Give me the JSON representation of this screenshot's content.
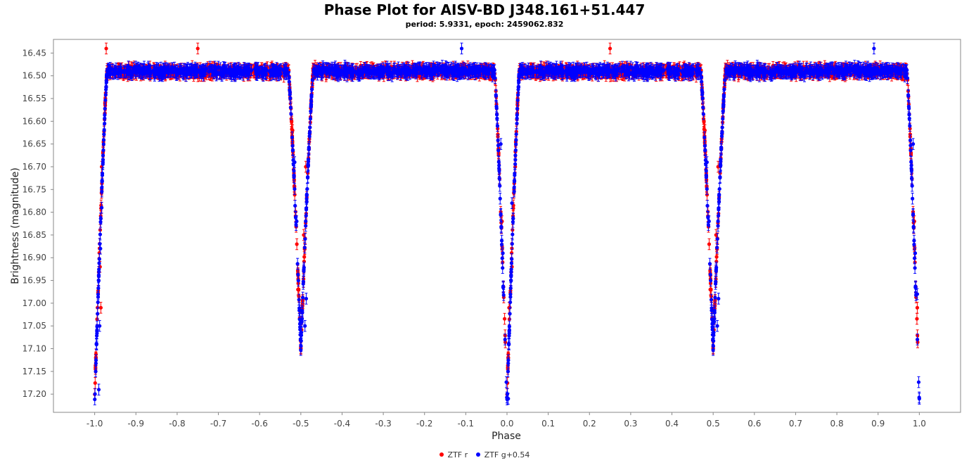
{
  "chart_data": {
    "type": "scatter",
    "title": "Phase Plot for AISV-BD J348.161+51.447",
    "subtitle": "period: 5.9331, epoch: 2459062.832",
    "xlabel": "Phase",
    "ylabel": "Brightness (magnitude)",
    "xlim": [
      -1.1,
      1.1
    ],
    "ylim": [
      16.42,
      17.24
    ],
    "y_inverted": true,
    "x_ticks": [
      "-1.0",
      "-0.9",
      "-0.8",
      "-0.7",
      "-0.6",
      "-0.5",
      "-0.4",
      "-0.3",
      "-0.2",
      "-0.1",
      "0.0",
      "0.1",
      "0.2",
      "0.3",
      "0.4",
      "0.5",
      "0.6",
      "0.7",
      "0.8",
      "0.9",
      "1.0"
    ],
    "y_ticks": [
      "16.45",
      "16.50",
      "16.55",
      "16.60",
      "16.65",
      "16.70",
      "16.75",
      "16.80",
      "16.85",
      "16.90",
      "16.95",
      "17.00",
      "17.05",
      "17.10",
      "17.15",
      "17.20"
    ],
    "grid": false,
    "legend_position": "bottom",
    "series": [
      {
        "name": "ZTF r",
        "color": "#ff0000",
        "error_bars": true,
        "baseline_mag": 16.49,
        "primary_eclipse": {
          "center_phase": 0.0,
          "depth_mag": 17.2,
          "half_width": 0.03
        },
        "secondary_eclipse": {
          "center_phase": 0.5,
          "depth_mag": 17.1,
          "half_width": 0.03
        },
        "sample_points": [
          {
            "x": -0.987,
            "y": 16.92
          },
          {
            "x": -0.985,
            "y": 17.01
          },
          {
            "x": -0.983,
            "y": 16.7
          },
          {
            "x": -0.98,
            "y": 16.67
          },
          {
            "x": -0.975,
            "y": 16.56
          },
          {
            "x": -0.972,
            "y": 16.44
          },
          {
            "x": -0.52,
            "y": 16.62
          },
          {
            "x": -0.507,
            "y": 16.97
          },
          {
            "x": -0.5,
            "y": 17.1
          },
          {
            "x": -0.493,
            "y": 16.85
          },
          {
            "x": -0.488,
            "y": 16.7
          },
          {
            "x": -0.012,
            "y": 16.82
          },
          {
            "x": 0.005,
            "y": 17.01
          },
          {
            "x": 0.012,
            "y": 16.92
          },
          {
            "x": 0.02,
            "y": 16.7
          },
          {
            "x": 0.48,
            "y": 16.62
          },
          {
            "x": 0.493,
            "y": 16.97
          },
          {
            "x": 0.5,
            "y": 17.1
          },
          {
            "x": 0.507,
            "y": 16.85
          },
          {
            "x": 0.512,
            "y": 16.7
          },
          {
            "x": 0.988,
            "y": 16.82
          },
          {
            "x": 0.995,
            "y": 17.01
          },
          {
            "x": -0.75,
            "y": 16.44
          },
          {
            "x": 0.25,
            "y": 16.44
          }
        ]
      },
      {
        "name": "ZTF g+0.54",
        "color": "#0000ff",
        "error_bars": true,
        "baseline_mag": 16.49,
        "primary_eclipse": {
          "center_phase": 0.0,
          "depth_mag": 17.22,
          "half_width": 0.03
        },
        "secondary_eclipse": {
          "center_phase": 0.5,
          "depth_mag": 17.1,
          "half_width": 0.03
        },
        "sample_points": [
          {
            "x": -0.99,
            "y": 17.19
          },
          {
            "x": -0.988,
            "y": 17.05
          },
          {
            "x": -0.986,
            "y": 16.88
          },
          {
            "x": -0.983,
            "y": 16.79
          },
          {
            "x": -0.98,
            "y": 16.69
          },
          {
            "x": -0.977,
            "y": 16.62
          },
          {
            "x": -0.515,
            "y": 16.69
          },
          {
            "x": -0.51,
            "y": 16.82
          },
          {
            "x": -0.49,
            "y": 17.05
          },
          {
            "x": -0.487,
            "y": 16.99
          },
          {
            "x": -0.015,
            "y": 16.65
          },
          {
            "x": -0.01,
            "y": 16.89
          },
          {
            "x": 0.003,
            "y": 17.21
          },
          {
            "x": 0.012,
            "y": 16.78
          },
          {
            "x": 0.485,
            "y": 16.69
          },
          {
            "x": 0.49,
            "y": 16.82
          },
          {
            "x": 0.51,
            "y": 17.05
          },
          {
            "x": 0.513,
            "y": 16.99
          },
          {
            "x": 0.985,
            "y": 16.65
          },
          {
            "x": 0.99,
            "y": 16.89
          },
          {
            "x": 0.995,
            "y": 16.98
          },
          {
            "x": 1.0,
            "y": 17.21
          },
          {
            "x": -0.11,
            "y": 16.44
          },
          {
            "x": 0.89,
            "y": 16.44
          }
        ]
      }
    ]
  }
}
